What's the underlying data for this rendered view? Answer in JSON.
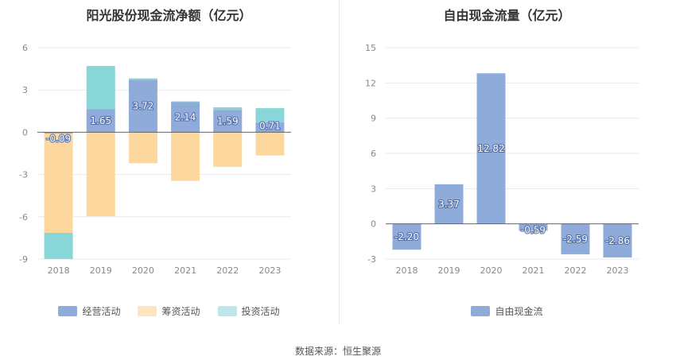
{
  "colors": {
    "operating": "#8eabd9",
    "financing": "#fdd89e",
    "investing": "#89d6d9",
    "fcf": "#8eabd9",
    "grid": "#e6e9f2",
    "zero_line": "#666666"
  },
  "source": "数据来源：恒生聚源",
  "chart_data": [
    {
      "type": "bar",
      "stacked": true,
      "title": "阳光股份现金流净额（亿元）",
      "categories": [
        "2018",
        "2019",
        "2020",
        "2021",
        "2022",
        "2023"
      ],
      "ylim": [
        -9,
        6
      ],
      "yticks": [
        6,
        3,
        0,
        -3,
        -6,
        -9
      ],
      "series": [
        {
          "name": "经营活动",
          "values": [
            -0.09,
            1.65,
            3.72,
            2.14,
            1.59,
            0.71
          ],
          "color_key": "operating",
          "labeled": true
        },
        {
          "name": "筹资活动",
          "values": [
            -7.05,
            -5.95,
            -2.2,
            -3.45,
            -2.45,
            -1.65
          ],
          "color_key": "financing",
          "labeled": false
        },
        {
          "name": "投资活动",
          "values": [
            -1.85,
            3.05,
            0.1,
            0.05,
            0.18,
            1.0
          ],
          "color_key": "investing",
          "labeled": false
        }
      ],
      "labels": [
        "-0.09",
        "1.65",
        "3.72",
        "2.14",
        "1.59",
        "0.71"
      ],
      "legend": [
        "经营活动",
        "筹资活动",
        "投资活动"
      ]
    },
    {
      "type": "bar",
      "title": "自由现金流量（亿元）",
      "categories": [
        "2018",
        "2019",
        "2020",
        "2021",
        "2022",
        "2023"
      ],
      "ylim": [
        -3,
        15
      ],
      "yticks": [
        15,
        12,
        9,
        6,
        3,
        0,
        -3
      ],
      "series": [
        {
          "name": "自由现金流",
          "values": [
            -2.2,
            3.37,
            12.82,
            -0.59,
            -2.59,
            -2.86
          ],
          "color_key": "fcf",
          "labeled": true
        }
      ],
      "labels": [
        "-2.20",
        "3.37",
        "12.82",
        "-0.59",
        "-2.59",
        "-2.86"
      ],
      "legend": [
        "自由现金流"
      ]
    }
  ]
}
